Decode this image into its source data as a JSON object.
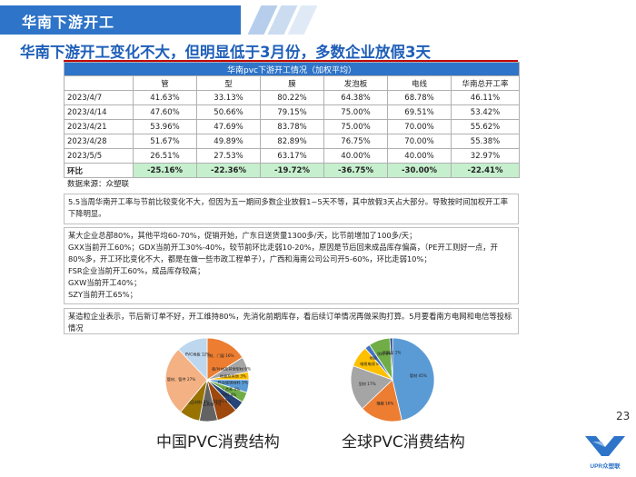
{
  "header": {
    "section_title": "华南下游开工",
    "headline": "华南下游开工变化不大，但明显低于3月份，多数企业放假3天"
  },
  "table": {
    "title": "华南pvc下游开工情况（加权平均）",
    "columns": [
      "",
      "管",
      "型",
      "膜",
      "发泡板",
      "电线",
      "华南总开工率"
    ],
    "rows": [
      [
        "2023/4/7",
        "41.63%",
        "33.13%",
        "80.22%",
        "64.38%",
        "68.78%",
        "46.11%"
      ],
      [
        "2023/4/14",
        "47.60%",
        "50.66%",
        "79.15%",
        "75.00%",
        "69.51%",
        "53.42%"
      ],
      [
        "2023/4/21",
        "53.96%",
        "47.69%",
        "83.78%",
        "75.00%",
        "70.00%",
        "55.62%"
      ],
      [
        "2023/4/28",
        "51.67%",
        "49.89%",
        "82.89%",
        "76.75%",
        "70.00%",
        "55.38%"
      ],
      [
        "2023/5/5",
        "26.51%",
        "27.53%",
        "63.17%",
        "40.00%",
        "40.00%",
        "32.97%"
      ]
    ],
    "total_row": [
      "环比",
      "-25.16%",
      "-22.36%",
      "-19.72%",
      "-36.75%",
      "-30.00%",
      "-22.41%"
    ]
  },
  "source": "数据来源：众塑联",
  "notes": {
    "summary": "5.5当周华南开工率与节前比较变化不大，但因为五一期间多数企业放假1~5天不等，其中放假3天占大部分。导致按时间加权开工率下降明显。",
    "detail_lines": [
      "某大企业总部80%，其他平均60-70%，促销开始，广东日送货量1300多/天，比节前增加了100多/天；",
      "GXX当前开工60%；GDX当前开工30%-40%，较节前环比走弱10-20%，原因是节后回来成品库存偏高，（PE开工则好一点，开80%多，开工环比变化不大，都是在做一些市政工程单子），广西和海南公司公司开5-60%，环比走弱10%；",
      "FSR企业当前开工60%，成品库存较高；",
      "GXW当前开工40%；",
      "SZY当前开工65%；"
    ],
    "granule": "某造粒企业表示，节后新订单不好，开工维持80%，先消化前期库存，看后续订单情况再做采购打算。5月要看南方电网和电信等投标情况"
  },
  "chart_data": [
    {
      "type": "pie",
      "title": "中国PVC消费结构",
      "labels": [
        "型材、门窗",
        "板/片材及其他型材",
        "地板及其他",
        "鞋及玻璃材料",
        "人造革",
        "电缆料",
        "包装材料",
        "软制品其他",
        "软制品材料",
        "管材、管件",
        "PVC地板"
      ],
      "values": [
        16,
        6,
        3,
        5,
        4,
        4,
        8,
        7,
        8,
        27,
        12
      ]
    },
    {
      "type": "pie",
      "title": "全球PVC消费结构",
      "labels": [
        "管材",
        "薄膜",
        "型材",
        "电缆电线",
        "地板",
        "涂料",
        "瓶制品"
      ],
      "values": [
        45,
        16,
        17,
        8,
        2,
        8,
        1
      ]
    }
  ],
  "page": {
    "number": "23",
    "logo_text": "UPR众塑联"
  }
}
